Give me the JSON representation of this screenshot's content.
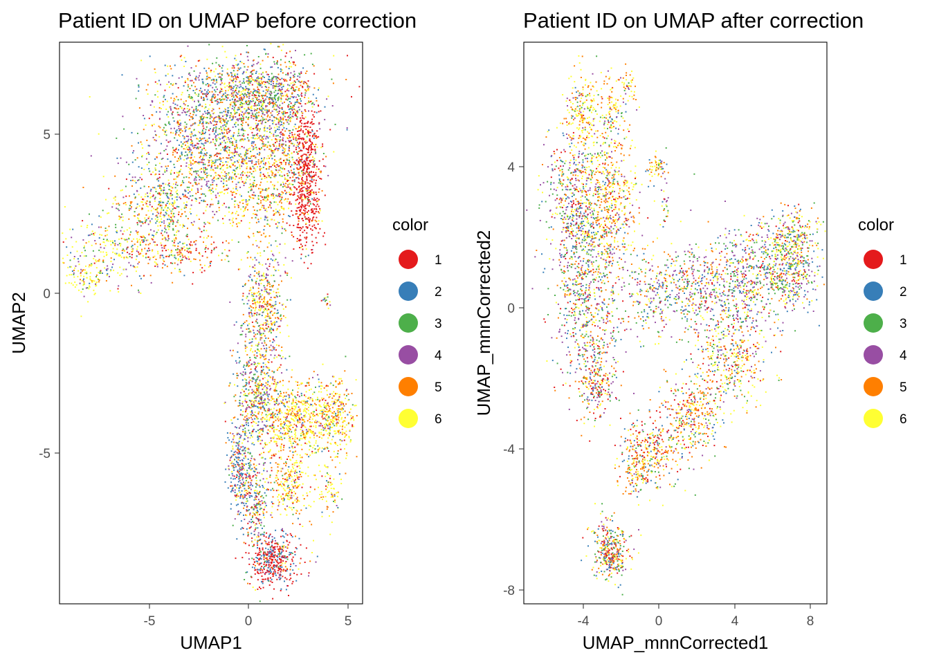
{
  "chart_data": [
    {
      "type": "scatter",
      "title": "Patient ID on UMAP before correction",
      "xlabel": "UMAP1",
      "ylabel": "UMAP2",
      "xlim": [
        -9.5,
        5.6
      ],
      "ylim": [
        -9.8,
        7.9
      ],
      "x_ticks": [
        -5,
        0,
        5
      ],
      "y_ticks": [
        -5,
        0,
        5
      ],
      "grid": false,
      "legend": {
        "title": "color",
        "placement": "right",
        "entries": [
          "1",
          "2",
          "3",
          "4",
          "5",
          "6"
        ]
      },
      "colors": [
        "#e41a1c",
        "#377eb8",
        "#4daf4a",
        "#984ea3",
        "#ff7f00",
        "#ffff33"
      ],
      "clusters": [
        {
          "x": -1.0,
          "y": 5.8,
          "sx": 2.0,
          "sy": 0.9,
          "n": 1100,
          "w": [
            0.1,
            0.18,
            0.2,
            0.2,
            0.16,
            0.16
          ]
        },
        {
          "x": 0.6,
          "y": 6.3,
          "sx": 1.3,
          "sy": 0.5,
          "n": 500,
          "w": [
            0.08,
            0.16,
            0.22,
            0.2,
            0.2,
            0.14
          ]
        },
        {
          "x": -2.5,
          "y": 4.2,
          "sx": 1.5,
          "sy": 0.9,
          "n": 650,
          "w": [
            0.08,
            0.15,
            0.2,
            0.2,
            0.17,
            0.2
          ]
        },
        {
          "x": 0.5,
          "y": 3.5,
          "sx": 1.3,
          "sy": 0.8,
          "n": 600,
          "w": [
            0.06,
            0.06,
            0.1,
            0.08,
            0.3,
            0.4
          ]
        },
        {
          "x": 2.8,
          "y": 3.6,
          "sx": 0.35,
          "sy": 1.2,
          "n": 550,
          "w": [
            0.88,
            0.03,
            0.02,
            0.02,
            0.03,
            0.02
          ]
        },
        {
          "x": 1.8,
          "y": 4.8,
          "sx": 0.6,
          "sy": 1.4,
          "n": 300,
          "w": [
            0.3,
            0.1,
            0.1,
            0.1,
            0.2,
            0.2
          ]
        },
        {
          "x": -4.5,
          "y": 2.7,
          "sx": 1.1,
          "sy": 0.55,
          "n": 350,
          "w": [
            0.1,
            0.1,
            0.15,
            0.15,
            0.2,
            0.3
          ]
        },
        {
          "x": -6.6,
          "y": 1.4,
          "sx": 1.3,
          "sy": 0.6,
          "n": 280,
          "w": [
            0.03,
            0.1,
            0.15,
            0.15,
            0.12,
            0.45
          ]
        },
        {
          "x": -8.2,
          "y": 0.5,
          "sx": 0.6,
          "sy": 0.3,
          "n": 90,
          "w": [
            0.02,
            0.05,
            0.1,
            0.08,
            0.1,
            0.65
          ]
        },
        {
          "x": -3.5,
          "y": 1.3,
          "sx": 1.3,
          "sy": 0.35,
          "n": 200,
          "w": [
            0.35,
            0.05,
            0.1,
            0.05,
            0.25,
            0.2
          ]
        },
        {
          "x": 0.6,
          "y": -0.6,
          "sx": 0.55,
          "sy": 1.0,
          "n": 500,
          "w": [
            0.05,
            0.1,
            0.15,
            0.2,
            0.25,
            0.25
          ]
        },
        {
          "x": 0.4,
          "y": -3.2,
          "sx": 0.55,
          "sy": 0.8,
          "n": 400,
          "w": [
            0.05,
            0.18,
            0.15,
            0.2,
            0.2,
            0.22
          ]
        },
        {
          "x": 2.3,
          "y": -4.0,
          "sx": 1.2,
          "sy": 0.6,
          "n": 750,
          "w": [
            0.05,
            0.05,
            0.05,
            0.07,
            0.28,
            0.5
          ]
        },
        {
          "x": 4.3,
          "y": -3.9,
          "sx": 0.35,
          "sy": 0.6,
          "n": 200,
          "w": [
            0.05,
            0.05,
            0.05,
            0.05,
            0.3,
            0.5
          ]
        },
        {
          "x": 2.0,
          "y": -6.0,
          "sx": 0.55,
          "sy": 0.6,
          "n": 250,
          "w": [
            0.05,
            0.05,
            0.05,
            0.05,
            0.3,
            0.5
          ]
        },
        {
          "x": 4.0,
          "y": -6.3,
          "sx": 0.3,
          "sy": 0.4,
          "n": 70,
          "w": [
            0.1,
            0.05,
            0.05,
            0.05,
            0.25,
            0.5
          ]
        },
        {
          "x": -0.5,
          "y": -5.6,
          "sx": 0.3,
          "sy": 0.8,
          "n": 300,
          "w": [
            0.15,
            0.4,
            0.1,
            0.15,
            0.1,
            0.1
          ]
        },
        {
          "x": 0.3,
          "y": -6.5,
          "sx": 0.35,
          "sy": 0.7,
          "n": 220,
          "w": [
            0.15,
            0.2,
            0.15,
            0.2,
            0.15,
            0.15
          ]
        },
        {
          "x": 1.1,
          "y": -8.4,
          "sx": 0.6,
          "sy": 0.45,
          "n": 450,
          "w": [
            0.55,
            0.25,
            0.05,
            0.08,
            0.04,
            0.03
          ]
        },
        {
          "x": 3.8,
          "y": -0.3,
          "sx": 0.1,
          "sy": 0.1,
          "n": 15,
          "w": [
            0.1,
            0.1,
            0.2,
            0.2,
            0.2,
            0.2
          ]
        }
      ]
    },
    {
      "type": "scatter",
      "title": "Patient ID on UMAP after correction",
      "xlabel": "UMAP_mnnCorrected1",
      "ylabel": "UMAP_mnnCorrected2",
      "xlim": [
        -7.2,
        8.9
      ],
      "ylim": [
        -8.4,
        7.5
      ],
      "x_ticks": [
        -4,
        0,
        4,
        8
      ],
      "y_ticks": [
        -8,
        -4,
        0,
        4
      ],
      "grid": false,
      "legend": {
        "title": "color",
        "placement": "right",
        "entries": [
          "1",
          "2",
          "3",
          "4",
          "5",
          "6"
        ]
      },
      "colors": [
        "#e41a1c",
        "#377eb8",
        "#4daf4a",
        "#984ea3",
        "#ff7f00",
        "#ffff33"
      ],
      "clusters": [
        {
          "x": -4.6,
          "y": 2.9,
          "sx": 0.8,
          "sy": 1.0,
          "n": 500,
          "w": [
            0.1,
            0.18,
            0.2,
            0.22,
            0.15,
            0.15
          ]
        },
        {
          "x": -2.7,
          "y": 3.0,
          "sx": 0.8,
          "sy": 1.0,
          "n": 550,
          "w": [
            0.05,
            0.06,
            0.1,
            0.1,
            0.3,
            0.39
          ]
        },
        {
          "x": -4.2,
          "y": 5.5,
          "sx": 0.45,
          "sy": 0.6,
          "n": 200,
          "w": [
            0.04,
            0.04,
            0.05,
            0.05,
            0.3,
            0.52
          ]
        },
        {
          "x": -2.5,
          "y": 5.6,
          "sx": 0.45,
          "sy": 0.55,
          "n": 120,
          "w": [
            0.05,
            0.05,
            0.05,
            0.1,
            0.3,
            0.45
          ]
        },
        {
          "x": -1.6,
          "y": 6.3,
          "sx": 0.2,
          "sy": 0.2,
          "n": 30,
          "w": [
            0.05,
            0.05,
            0.05,
            0.1,
            0.3,
            0.45
          ]
        },
        {
          "x": -0.2,
          "y": 4.0,
          "sx": 0.25,
          "sy": 0.2,
          "n": 50,
          "w": [
            0.05,
            0.05,
            0.05,
            0.1,
            0.3,
            0.45
          ]
        },
        {
          "x": 0.3,
          "y": 3.0,
          "sx": 0.1,
          "sy": 0.6,
          "n": 30,
          "w": [
            0.1,
            0.1,
            0.2,
            0.2,
            0.2,
            0.2
          ]
        },
        {
          "x": -3.8,
          "y": 0.3,
          "sx": 0.9,
          "sy": 1.3,
          "n": 700,
          "w": [
            0.1,
            0.15,
            0.2,
            0.22,
            0.15,
            0.18
          ]
        },
        {
          "x": -3.3,
          "y": -2.2,
          "sx": 0.5,
          "sy": 0.5,
          "n": 200,
          "w": [
            0.3,
            0.1,
            0.15,
            0.15,
            0.15,
            0.15
          ]
        },
        {
          "x": -0.4,
          "y": 0.3,
          "sx": 0.6,
          "sy": 0.6,
          "n": 150,
          "w": [
            0.05,
            0.15,
            0.25,
            0.25,
            0.15,
            0.15
          ]
        },
        {
          "x": 1.5,
          "y": 0.5,
          "sx": 1.0,
          "sy": 0.6,
          "n": 300,
          "w": [
            0.05,
            0.15,
            0.2,
            0.25,
            0.15,
            0.2
          ]
        },
        {
          "x": 4.2,
          "y": 0.6,
          "sx": 1.3,
          "sy": 0.8,
          "n": 600,
          "w": [
            0.08,
            0.15,
            0.2,
            0.22,
            0.15,
            0.2
          ]
        },
        {
          "x": 6.8,
          "y": 1.2,
          "sx": 0.9,
          "sy": 0.6,
          "n": 500,
          "w": [
            0.06,
            0.18,
            0.2,
            0.22,
            0.14,
            0.2
          ]
        },
        {
          "x": 7.3,
          "y": 2.0,
          "sx": 0.6,
          "sy": 0.4,
          "n": 160,
          "w": [
            0.05,
            0.1,
            0.15,
            0.15,
            0.2,
            0.35
          ]
        },
        {
          "x": 3.8,
          "y": -1.6,
          "sx": 1.0,
          "sy": 0.6,
          "n": 350,
          "w": [
            0.1,
            0.1,
            0.15,
            0.15,
            0.25,
            0.25
          ]
        },
        {
          "x": 1.8,
          "y": -3.1,
          "sx": 0.9,
          "sy": 0.6,
          "n": 350,
          "w": [
            0.1,
            0.1,
            0.1,
            0.1,
            0.3,
            0.3
          ]
        },
        {
          "x": -0.5,
          "y": -4.1,
          "sx": 0.8,
          "sy": 0.5,
          "n": 300,
          "w": [
            0.2,
            0.1,
            0.1,
            0.1,
            0.25,
            0.25
          ]
        },
        {
          "x": -1.2,
          "y": -4.7,
          "sx": 0.4,
          "sy": 0.4,
          "n": 100,
          "w": [
            0.1,
            0.1,
            0.1,
            0.1,
            0.3,
            0.3
          ]
        },
        {
          "x": -2.6,
          "y": -6.9,
          "sx": 0.5,
          "sy": 0.45,
          "n": 350,
          "w": [
            0.15,
            0.12,
            0.18,
            0.15,
            0.2,
            0.2
          ]
        }
      ]
    }
  ]
}
